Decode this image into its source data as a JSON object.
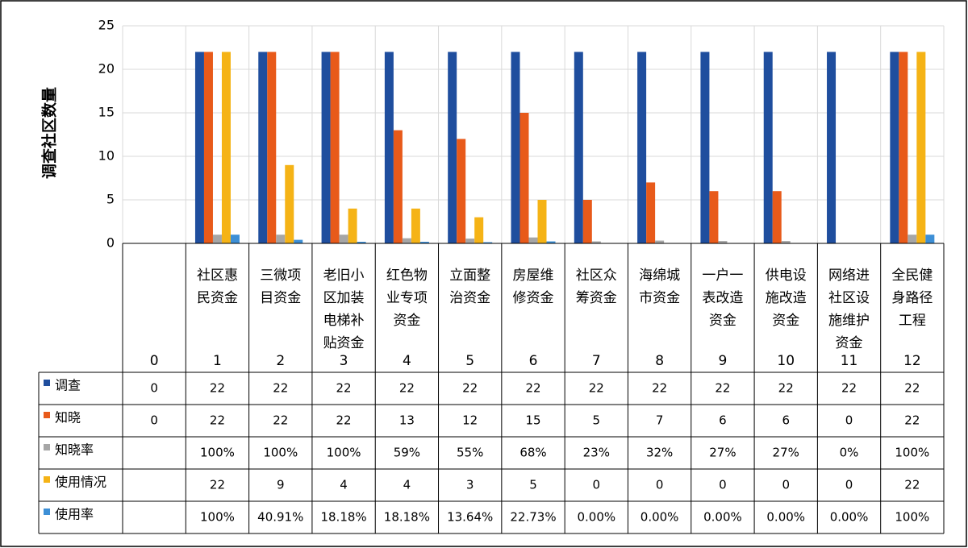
{
  "chart_data": {
    "type": "bar",
    "ylabel": "调查社区数量",
    "ylim": [
      0,
      25
    ],
    "yticks": [
      0,
      5,
      10,
      15,
      20,
      25
    ],
    "grid": true,
    "legend": "data-table-left",
    "x": [
      "0",
      "1",
      "2",
      "3",
      "4",
      "5",
      "6",
      "7",
      "8",
      "9",
      "10",
      "11",
      "12"
    ],
    "categories": [
      "",
      "社区惠民资金",
      "三微项目资金",
      "老旧小区加装电梯补贴资金",
      "红色物业专项资金",
      "立面整治资金",
      "房屋维修资金",
      "社区众筹资金",
      "海绵城市资金",
      "一户一表改造资金",
      "供电设施改造资金",
      "网络进社区设施维护资金",
      "全民健身路径工程"
    ],
    "category_lines": [
      [],
      [
        "社区惠",
        "民资金"
      ],
      [
        "三微项",
        "目资金"
      ],
      [
        "老旧小",
        "区加装",
        "电梯补",
        "贴资金"
      ],
      [
        "红色物",
        "业专项",
        "资金"
      ],
      [
        "立面整",
        "治资金"
      ],
      [
        "房屋维",
        "修资金"
      ],
      [
        "社区众",
        "筹资金"
      ],
      [
        "海绵城",
        "市资金"
      ],
      [
        "一户一",
        "表改造",
        "资金"
      ],
      [
        "供电设",
        "施改造",
        "资金"
      ],
      [
        "网络进",
        "社区设",
        "施维护",
        "资金"
      ],
      [
        "全民健",
        "身路径",
        "工程"
      ]
    ],
    "series": [
      {
        "name": "调查",
        "color": "#1f4e9e",
        "values": [
          0,
          22,
          22,
          22,
          22,
          22,
          22,
          22,
          22,
          22,
          22,
          22,
          22
        ],
        "labels": [
          "0",
          "22",
          "22",
          "22",
          "22",
          "22",
          "22",
          "22",
          "22",
          "22",
          "22",
          "22",
          "22"
        ]
      },
      {
        "name": "知晓",
        "color": "#e85a1a",
        "values": [
          0,
          22,
          22,
          22,
          13,
          12,
          15,
          5,
          7,
          6,
          6,
          0,
          22
        ],
        "labels": [
          "0",
          "22",
          "22",
          "22",
          "13",
          "12",
          "15",
          "5",
          "7",
          "6",
          "6",
          "0",
          "22"
        ]
      },
      {
        "name": "知晓率",
        "color": "#a6a6a6",
        "values": [
          0,
          1,
          1,
          1,
          0.59,
          0.55,
          0.68,
          0.23,
          0.32,
          0.27,
          0.27,
          0,
          1
        ],
        "labels": [
          "",
          "100%",
          "100%",
          "100%",
          "59%",
          "55%",
          "68%",
          "23%",
          "32%",
          "27%",
          "27%",
          "0%",
          "100%"
        ]
      },
      {
        "name": "使用情况",
        "color": "#f5b316",
        "values": [
          0,
          22,
          9,
          4,
          4,
          3,
          5,
          0,
          0,
          0,
          0,
          0,
          22
        ],
        "labels": [
          "",
          "22",
          "9",
          "4",
          "4",
          "3",
          "5",
          "0",
          "0",
          "0",
          "0",
          "0",
          "22"
        ]
      },
      {
        "name": "使用率",
        "color": "#3d8fd6",
        "values": [
          0,
          1,
          0.4091,
          0.1818,
          0.1818,
          0.1364,
          0.2273,
          0,
          0,
          0,
          0,
          0,
          1
        ],
        "labels": [
          "",
          "100%",
          "40.91%",
          "18.18%",
          "18.18%",
          "13.64%",
          "22.73%",
          "0.00%",
          "0.00%",
          "0.00%",
          "0.00%",
          "0.00%",
          "100%"
        ]
      }
    ]
  }
}
